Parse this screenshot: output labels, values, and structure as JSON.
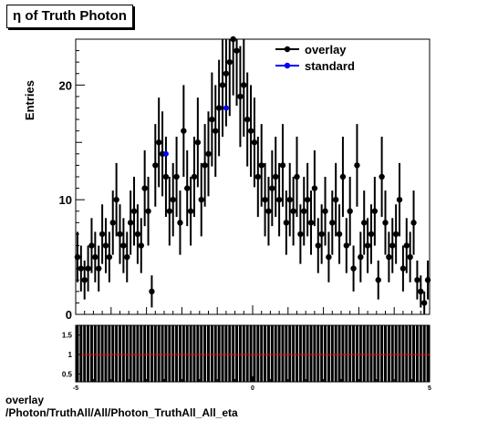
{
  "title": "η of Truth Photon",
  "caption": {
    "line1": "overlay",
    "line2": "/Photon/TruthAll/All/Photon_TruthAll_All_eta"
  },
  "colors": {
    "overlay": "#000000",
    "standard": "#0000ff",
    "ratio_line": "#ff0000"
  },
  "chart_data": [
    {
      "type": "scatter",
      "ylabel": "Entries",
      "xlim": [
        -5,
        5
      ],
      "ylim": [
        0,
        24
      ],
      "yticks": [
        0,
        10,
        20
      ],
      "legend": {
        "position": "top-right",
        "entries": [
          "overlay",
          "standard"
        ]
      },
      "series": [
        {
          "name": "overlay",
          "x": [
            -4.95,
            -4.85,
            -4.75,
            -4.65,
            -4.55,
            -4.45,
            -4.35,
            -4.25,
            -4.15,
            -4.05,
            -3.95,
            -3.85,
            -3.75,
            -3.65,
            -3.55,
            -3.45,
            -3.35,
            -3.25,
            -3.15,
            -3.05,
            -2.95,
            -2.85,
            -2.75,
            -2.65,
            -2.55,
            -2.45,
            -2.35,
            -2.25,
            -2.15,
            -2.05,
            -1.95,
            -1.85,
            -1.75,
            -1.65,
            -1.55,
            -1.45,
            -1.35,
            -1.25,
            -1.15,
            -1.05,
            -0.95,
            -0.85,
            -0.75,
            -0.65,
            -0.55,
            -0.45,
            -0.35,
            -0.25,
            -0.15,
            -0.05,
            0.05,
            0.15,
            0.25,
            0.35,
            0.45,
            0.55,
            0.65,
            0.75,
            0.85,
            0.95,
            1.05,
            1.15,
            1.25,
            1.35,
            1.45,
            1.55,
            1.65,
            1.75,
            1.85,
            1.95,
            2.05,
            2.15,
            2.25,
            2.35,
            2.45,
            2.55,
            2.65,
            2.75,
            2.85,
            2.95,
            3.05,
            3.15,
            3.25,
            3.35,
            3.45,
            3.55,
            3.65,
            3.75,
            3.85,
            3.95,
            4.05,
            4.15,
            4.25,
            4.35,
            4.45,
            4.55,
            4.65,
            4.75,
            4.85,
            4.95
          ],
          "y": [
            5,
            4,
            3,
            4,
            6,
            5,
            4,
            7,
            6,
            5,
            8,
            10,
            7,
            6,
            5,
            8,
            9,
            7,
            6,
            11,
            9,
            2,
            13,
            15,
            14,
            12,
            9,
            10,
            12,
            8,
            16,
            11,
            9,
            12,
            15,
            10,
            13,
            14,
            17,
            16,
            18,
            20,
            21,
            22,
            24,
            23,
            19,
            20,
            17,
            16,
            15,
            12,
            13,
            10,
            9,
            11,
            12,
            10,
            13,
            8,
            10,
            9,
            12,
            7,
            9,
            10,
            8,
            11,
            6,
            7,
            9,
            5,
            8,
            10,
            7,
            12,
            6,
            9,
            4,
            13,
            5,
            8,
            6,
            7,
            9,
            3,
            12,
            8,
            5,
            6,
            7,
            10,
            4,
            6,
            5,
            8,
            3,
            2,
            1,
            3
          ],
          "yerr": [
            2.2,
            2.0,
            1.7,
            2.0,
            2.4,
            2.2,
            2.0,
            2.6,
            2.4,
            2.2,
            2.8,
            3.2,
            2.6,
            2.4,
            2.2,
            2.8,
            3.0,
            2.6,
            2.4,
            3.3,
            3.0,
            1.4,
            3.6,
            3.9,
            3.7,
            3.5,
            3.0,
            3.2,
            3.5,
            2.8,
            4.0,
            3.3,
            3.0,
            3.5,
            3.9,
            3.2,
            3.6,
            3.7,
            4.1,
            4.0,
            4.2,
            4.5,
            4.6,
            4.7,
            4.9,
            4.8,
            4.4,
            4.5,
            4.1,
            4.0,
            3.9,
            3.5,
            3.6,
            3.2,
            3.0,
            3.3,
            3.5,
            3.2,
            3.6,
            2.8,
            3.2,
            3.0,
            3.5,
            2.6,
            3.0,
            3.2,
            2.8,
            3.3,
            2.4,
            2.6,
            3.0,
            2.2,
            2.8,
            3.2,
            2.6,
            3.5,
            2.4,
            3.0,
            2.0,
            3.6,
            2.2,
            2.8,
            2.4,
            2.6,
            3.0,
            1.7,
            3.5,
            2.8,
            2.2,
            2.4,
            2.6,
            3.2,
            2.0,
            2.4,
            2.2,
            2.8,
            1.7,
            1.4,
            1.0,
            1.7
          ]
        },
        {
          "name": "standard",
          "x": [
            -2.45,
            -0.75
          ],
          "y": [
            14,
            18
          ]
        }
      ]
    },
    {
      "type": "scatter",
      "xlim": [
        -5,
        5
      ],
      "ylim": [
        0.3,
        1.75
      ],
      "xticks": [
        -5,
        0,
        5
      ],
      "yticks": [
        0.5,
        1,
        1.5
      ],
      "reference_line": 1,
      "series": [
        {
          "name": "overlay/standard",
          "y": 1.0,
          "yerr_band": [
            0.3,
            1.75
          ]
        }
      ]
    }
  ]
}
